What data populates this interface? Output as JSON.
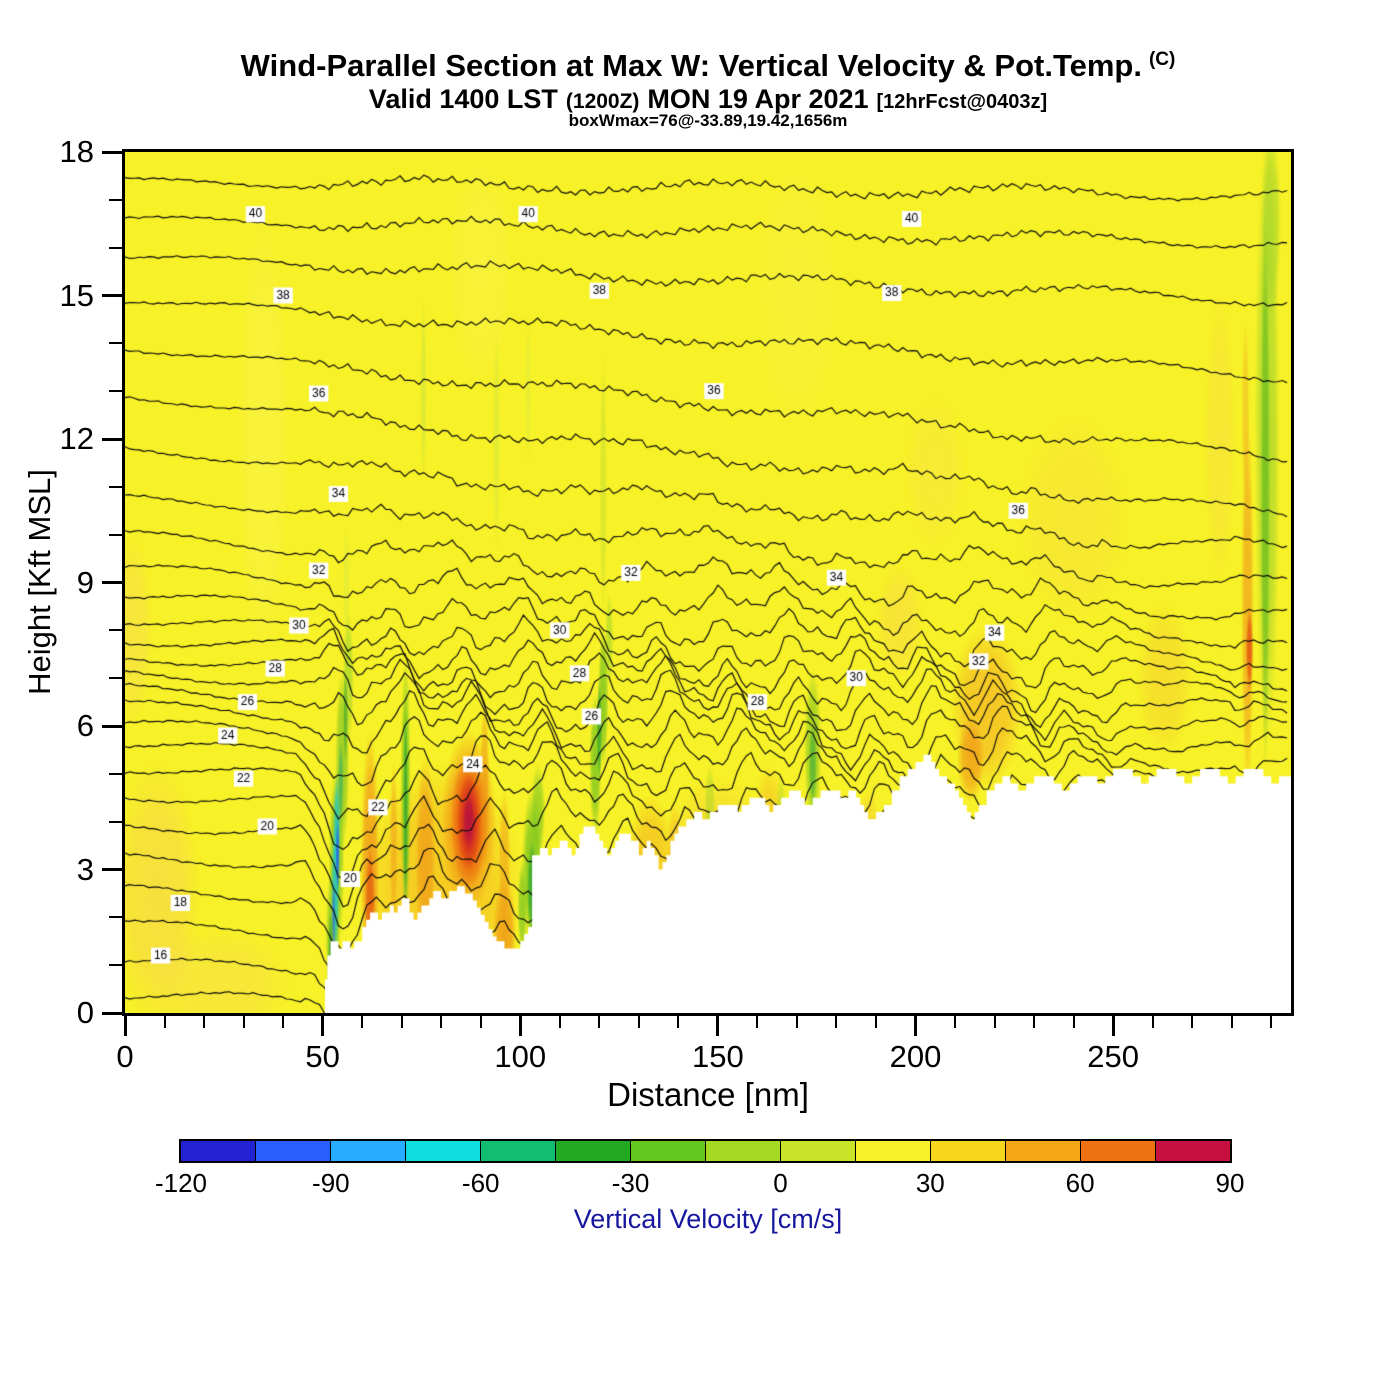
{
  "title": {
    "main": "Wind-Parallel Section at Max W: Vertical Velocity & Pot.Temp.",
    "suffix": "(C)",
    "valid_prefix": "Valid 1400 LST",
    "valid_zulu": "(1200Z)",
    "valid_date": "MON 19 Apr 2021",
    "forecast": "[12hrFcst@0403z]",
    "box_info": "boxWmax=76@-33.89,19.42,1656m"
  },
  "axes": {
    "x_label": "Distance [nm]",
    "y_label": "Height [Kft MSL]",
    "x_ticks": [
      0,
      50,
      100,
      150,
      200,
      250
    ],
    "y_ticks": [
      0,
      3,
      6,
      9,
      12,
      15,
      18
    ],
    "x_minor_step": 10,
    "y_minor_step": 1,
    "x_range": [
      0,
      295
    ],
    "y_range": [
      0,
      18
    ]
  },
  "colorbar": {
    "label": "Vertical Velocity [cm/s]",
    "ticks": [
      -120,
      -90,
      -60,
      -30,
      0,
      30,
      60,
      90
    ],
    "range": [
      -120,
      90
    ],
    "label_color": "#16169e",
    "colors": [
      "#2222d2",
      "#2a5eff",
      "#27acff",
      "#0fdede",
      "#12bd72",
      "#22aa22",
      "#63c81e",
      "#a4da22",
      "#c9e428",
      "#f7f127",
      "#f6d71c",
      "#f4a816",
      "#ee7212",
      "#c81040"
    ]
  },
  "chart_data": {
    "type": "heatmap",
    "title": "Wind-Parallel Section at Max W: Vertical Velocity & Pot.Temp. (C)",
    "subtitle": "Valid 1400 LST (1200Z) MON 19 Apr 2021 [12hrFcst@0403z]",
    "annotation": "boxWmax=76@-33.89,19.42,1656m",
    "xlabel": "Distance [nm]",
    "ylabel": "Height [Kft MSL]",
    "x": {
      "range": [
        0,
        295
      ],
      "ticks": [
        0,
        50,
        100,
        150,
        200,
        250
      ],
      "minor_step": 10
    },
    "y": {
      "range": [
        0,
        18
      ],
      "ticks": [
        0,
        3,
        6,
        9,
        12,
        15,
        18
      ],
      "minor_step": 1
    },
    "base_color": "#f7f127",
    "shaded_field": {
      "name": "Vertical Velocity",
      "units": "cm/s",
      "range": [
        -120,
        90
      ],
      "contour_interval": 15
    },
    "contour_field": {
      "name": "Potential Temperature",
      "units": "C",
      "labeled_levels": [
        16,
        18,
        20,
        22,
        24,
        26,
        28,
        30,
        32,
        34,
        36,
        38,
        40
      ]
    },
    "isentropes": {
      "levels": [
        15,
        16,
        17,
        18,
        19,
        20,
        21,
        22,
        23,
        24,
        25,
        26,
        27,
        28,
        29,
        30,
        31,
        32,
        33,
        34,
        35,
        36,
        37,
        38,
        39,
        40,
        41
      ],
      "left_edge_height_kft": [
        0.35,
        1.05,
        1.85,
        2.6,
        3.3,
        3.95,
        4.55,
        5.1,
        5.6,
        6.05,
        6.45,
        6.8,
        7.12,
        7.45,
        7.8,
        8.2,
        8.7,
        9.3,
        10.0,
        10.8,
        11.8,
        12.9,
        13.9,
        14.9,
        15.8,
        16.6,
        17.4
      ],
      "right_edge_height_kft": [
        -0.3,
        0.3,
        0.9,
        1.5,
        2.1,
        2.7,
        3.3,
        3.9,
        4.4,
        4.8,
        5.15,
        5.55,
        5.9,
        6.25,
        6.6,
        6.95,
        7.35,
        7.8,
        8.3,
        8.9,
        9.6,
        10.4,
        11.6,
        13.3,
        14.9,
        16.1,
        17.1
      ]
    },
    "contour_labels": [
      {
        "t": "40",
        "x": 33,
        "y": 16.7
      },
      {
        "t": "40",
        "x": 102,
        "y": 16.7
      },
      {
        "t": "40",
        "x": 199,
        "y": 16.6
      },
      {
        "t": "38",
        "x": 40,
        "y": 15.0
      },
      {
        "t": "38",
        "x": 120,
        "y": 15.1
      },
      {
        "t": "38",
        "x": 194,
        "y": 15.05
      },
      {
        "t": "36",
        "x": 49,
        "y": 12.95
      },
      {
        "t": "36",
        "x": 149,
        "y": 13.0
      },
      {
        "t": "36",
        "x": 226,
        "y": 10.5
      },
      {
        "t": "34",
        "x": 54,
        "y": 10.85
      },
      {
        "t": "34",
        "x": 180,
        "y": 9.1
      },
      {
        "t": "34",
        "x": 220,
        "y": 7.95
      },
      {
        "t": "32",
        "x": 49,
        "y": 9.25
      },
      {
        "t": "32",
        "x": 128,
        "y": 9.2
      },
      {
        "t": "32",
        "x": 216,
        "y": 7.35
      },
      {
        "t": "30",
        "x": 44,
        "y": 8.1
      },
      {
        "t": "30",
        "x": 110,
        "y": 8.0
      },
      {
        "t": "30",
        "x": 185,
        "y": 7.0
      },
      {
        "t": "28",
        "x": 38,
        "y": 7.2
      },
      {
        "t": "28",
        "x": 115,
        "y": 7.1
      },
      {
        "t": "28",
        "x": 160,
        "y": 6.5
      },
      {
        "t": "26",
        "x": 31,
        "y": 6.5
      },
      {
        "t": "26",
        "x": 118,
        "y": 6.2
      },
      {
        "t": "24",
        "x": 26,
        "y": 5.8
      },
      {
        "t": "24",
        "x": 88,
        "y": 5.2
      },
      {
        "t": "22",
        "x": 30,
        "y": 4.9
      },
      {
        "t": "22",
        "x": 64,
        "y": 4.3
      },
      {
        "t": "20",
        "x": 36,
        "y": 3.9
      },
      {
        "t": "20",
        "x": 57,
        "y": 2.8
      },
      {
        "t": "18",
        "x": 14,
        "y": 2.3
      },
      {
        "t": "16",
        "x": 9,
        "y": 1.2
      }
    ],
    "terrain_profile_kft": [
      [
        50,
        0
      ],
      [
        50.6,
        0.7
      ],
      [
        51.2,
        1.2
      ],
      [
        52,
        1.5
      ],
      [
        54,
        1.35
      ],
      [
        55,
        1.5
      ],
      [
        57,
        1.35
      ],
      [
        58,
        1.5
      ],
      [
        60,
        1.8
      ],
      [
        61,
        1.95
      ],
      [
        62,
        2.1
      ],
      [
        64,
        1.95
      ],
      [
        65,
        2.1
      ],
      [
        67,
        2.25
      ],
      [
        68,
        2.1
      ],
      [
        69,
        2.25
      ],
      [
        70,
        2.4
      ],
      [
        72,
        2.1
      ],
      [
        73,
        1.95
      ],
      [
        74,
        2.1
      ],
      [
        75,
        2.25
      ],
      [
        77,
        2.4
      ],
      [
        78,
        2.55
      ],
      [
        80,
        2.4
      ],
      [
        82,
        2.55
      ],
      [
        84,
        2.65
      ],
      [
        86,
        2.5
      ],
      [
        88,
        2.35
      ],
      [
        89,
        2.2
      ],
      [
        90,
        2.05
      ],
      [
        91,
        1.9
      ],
      [
        92,
        1.75
      ],
      [
        93,
        1.6
      ],
      [
        94,
        1.5
      ],
      [
        96,
        1.35
      ],
      [
        99,
        1.35
      ],
      [
        100,
        1.5
      ],
      [
        101,
        1.65
      ],
      [
        102,
        1.8
      ],
      [
        103,
        3.3
      ],
      [
        105,
        3.45
      ],
      [
        107,
        3.3
      ],
      [
        108,
        3.45
      ],
      [
        110,
        3.6
      ],
      [
        112,
        3.45
      ],
      [
        113,
        3.3
      ],
      [
        114,
        3.45
      ],
      [
        115,
        3.75
      ],
      [
        116,
        3.9
      ],
      [
        118,
        3.9
      ],
      [
        119,
        3.75
      ],
      [
        120,
        3.6
      ],
      [
        121,
        3.45
      ],
      [
        122,
        3.3
      ],
      [
        123,
        3.45
      ],
      [
        124,
        3.6
      ],
      [
        125,
        3.75
      ],
      [
        127,
        3.75
      ],
      [
        128,
        3.6
      ],
      [
        130,
        3.3
      ],
      [
        131,
        3.45
      ],
      [
        132,
        3.6
      ],
      [
        133,
        3.45
      ],
      [
        134,
        3.3
      ],
      [
        135,
        3
      ],
      [
        136,
        3.15
      ],
      [
        137,
        3.3
      ],
      [
        138,
        3.6
      ],
      [
        139,
        3.75
      ],
      [
        140,
        3.9
      ],
      [
        142,
        4.05
      ],
      [
        144,
        4.2
      ],
      [
        146,
        4.05
      ],
      [
        148,
        4.2
      ],
      [
        150,
        4.35
      ],
      [
        153,
        4.35
      ],
      [
        155,
        4.2
      ],
      [
        156,
        4.35
      ],
      [
        158,
        4.5
      ],
      [
        160,
        4.5
      ],
      [
        162,
        4.35
      ],
      [
        163,
        4.2
      ],
      [
        164,
        4.35
      ],
      [
        166,
        4.5
      ],
      [
        168,
        4.65
      ],
      [
        170,
        4.65
      ],
      [
        171,
        4.5
      ],
      [
        172,
        4.35
      ],
      [
        174,
        4.5
      ],
      [
        176,
        4.65
      ],
      [
        179,
        4.65
      ],
      [
        181,
        4.5
      ],
      [
        183,
        4.65
      ],
      [
        185,
        4.5
      ],
      [
        186,
        4.35
      ],
      [
        187,
        4.2
      ],
      [
        188,
        4.05
      ],
      [
        190,
        4.2
      ],
      [
        192,
        4.35
      ],
      [
        194,
        4.65
      ],
      [
        196,
        4.95
      ],
      [
        198,
        5.1
      ],
      [
        200,
        5.25
      ],
      [
        202,
        5.4
      ],
      [
        204,
        5.25
      ],
      [
        205,
        5.1
      ],
      [
        206,
        4.95
      ],
      [
        208,
        4.8
      ],
      [
        210,
        4.65
      ],
      [
        211,
        4.5
      ],
      [
        212,
        4.35
      ],
      [
        213,
        4.2
      ],
      [
        214,
        4.05
      ],
      [
        215,
        4.2
      ],
      [
        216,
        4.35
      ],
      [
        218,
        4.65
      ],
      [
        220,
        4.8
      ],
      [
        222,
        4.95
      ],
      [
        224,
        4.8
      ],
      [
        226,
        4.65
      ],
      [
        228,
        4.8
      ],
      [
        230,
        4.95
      ],
      [
        233,
        4.95
      ],
      [
        235,
        4.8
      ],
      [
        237,
        4.65
      ],
      [
        239,
        4.8
      ],
      [
        241,
        4.95
      ],
      [
        244,
        4.95
      ],
      [
        246,
        4.8
      ],
      [
        248,
        4.95
      ],
      [
        250,
        5.1
      ],
      [
        253,
        5.1
      ],
      [
        255,
        4.95
      ],
      [
        257,
        4.8
      ],
      [
        259,
        4.95
      ],
      [
        261,
        5.1
      ],
      [
        264,
        5.1
      ],
      [
        266,
        4.95
      ],
      [
        268,
        4.8
      ],
      [
        270,
        4.95
      ],
      [
        272,
        5.1
      ],
      [
        275,
        5.1
      ],
      [
        277,
        4.95
      ],
      [
        279,
        4.8
      ],
      [
        281,
        4.95
      ],
      [
        283,
        5.1
      ],
      [
        286,
        5.1
      ],
      [
        288,
        4.95
      ],
      [
        290,
        4.8
      ],
      [
        292,
        4.95
      ],
      [
        295,
        4.95
      ]
    ],
    "velocity_features": [
      [
        8,
        2.5,
        11,
        2.8,
        "#f7cf52",
        0.5
      ],
      [
        2,
        8,
        5,
        2,
        "#f7d45c",
        0.4
      ],
      [
        24,
        0.6,
        18,
        1.2,
        "#f7d45c",
        0.35
      ],
      [
        35,
        12,
        7,
        5,
        "#faf45a",
        0.4
      ],
      [
        90,
        15.5,
        9,
        2.5,
        "#faf45a",
        0.35
      ],
      [
        170,
        15,
        12,
        3,
        "#f9f254",
        0.3
      ],
      [
        150,
        3,
        14,
        2,
        "#f6c33a",
        0.5
      ],
      [
        133,
        3,
        6,
        1.6,
        "#f3a81e",
        0.55
      ],
      [
        96,
        1.6,
        3,
        1.3,
        "#ef9214",
        0.8
      ],
      [
        110,
        1.8,
        5,
        1.5,
        "#f4b01f",
        0.55
      ],
      [
        129,
        2.6,
        2.2,
        1.1,
        "#f0a01a",
        0.7
      ],
      [
        139,
        3.4,
        2,
        1,
        "#f4b324",
        0.55
      ],
      [
        158,
        3.2,
        3,
        1,
        "#f4b82a",
        0.5
      ],
      [
        163,
        4,
        4,
        1.2,
        "#f4b01f",
        0.45
      ],
      [
        188,
        3.8,
        3,
        0.9,
        "#f5c235",
        0.45
      ],
      [
        196,
        8.2,
        6,
        1.2,
        "#f7d44a",
        0.45
      ],
      [
        218,
        6.4,
        9,
        1.7,
        "#f4b324",
        0.7
      ],
      [
        214,
        5.3,
        3.5,
        0.9,
        "#ef8d13",
        0.65
      ],
      [
        240,
        10.3,
        14,
        2.2,
        "#f7dc40",
        0.45
      ],
      [
        205,
        11.3,
        8,
        1.6,
        "#f8e24a",
        0.4
      ],
      [
        263,
        7,
        7,
        1.6,
        "#f6cc30",
        0.5
      ],
      [
        277,
        12,
        4,
        3,
        "#f7da44",
        0.45
      ],
      [
        80,
        2.6,
        21,
        2.6,
        "#f4a41a",
        0.5
      ],
      [
        62,
        3,
        2.4,
        2.9,
        "#f09718",
        0.85
      ],
      [
        62,
        2.2,
        1.3,
        1.3,
        "#e2570f",
        0.8
      ],
      [
        68,
        3.5,
        1,
        1.8,
        "#f2a41c",
        0.65
      ],
      [
        76,
        3.2,
        2.6,
        2.2,
        "#f09c18",
        0.8
      ],
      [
        87,
        4,
        7,
        1.9,
        "#f29014",
        0.9
      ],
      [
        87,
        4,
        4.6,
        1.4,
        "#e8540e",
        0.9
      ],
      [
        87,
        4,
        2.9,
        1,
        "#d62a20",
        0.9
      ],
      [
        87,
        4,
        1.6,
        0.6,
        "#b51240",
        0.88
      ],
      [
        91,
        4.8,
        1.2,
        1.8,
        "#ef9014",
        0.6
      ],
      [
        96,
        3.2,
        1.5,
        1.5,
        "#f0a018",
        0.6
      ],
      [
        52.5,
        1.5,
        1.8,
        1.6,
        "#8cc922",
        0.92
      ],
      [
        53.5,
        3.2,
        2,
        2,
        "#8cc922",
        0.92
      ],
      [
        55,
        5.3,
        1.8,
        1.9,
        "#8cc922",
        0.85
      ],
      [
        56.5,
        7,
        1.4,
        1.4,
        "#a5d52a",
        0.75
      ],
      [
        52,
        1.2,
        0.6,
        1,
        "#2f9e2f",
        0.75
      ],
      [
        55.8,
        6.2,
        0.6,
        1,
        "#2f9e2f",
        0.6
      ],
      [
        53.2,
        2.6,
        1,
        1.4,
        "#1fc8c8",
        0.85
      ],
      [
        53.6,
        3.8,
        0.9,
        1.2,
        "#1fc8c8",
        0.85
      ],
      [
        53.8,
        3.3,
        0.5,
        0.8,
        "#2a62e0",
        0.85
      ],
      [
        52.8,
        2,
        0.5,
        0.8,
        "#2a62e0",
        0.6
      ],
      [
        54.6,
        4.8,
        0.7,
        0.9,
        "#35b065",
        0.7
      ],
      [
        56,
        9,
        0.8,
        1.2,
        "#cde846",
        0.45
      ],
      [
        71,
        4.6,
        1.3,
        2.9,
        "#79c81f",
        0.85
      ],
      [
        71,
        4.3,
        0.6,
        2.2,
        "#2fa42f",
        0.8
      ],
      [
        75.5,
        13,
        0.8,
        2,
        "#c3e23c",
        0.5
      ],
      [
        94,
        12,
        0.9,
        2.4,
        "#c9e542",
        0.45
      ],
      [
        102,
        13,
        0.7,
        1.6,
        "#cfe84a",
        0.4
      ],
      [
        121,
        11,
        0.9,
        2.8,
        "#b9dd34",
        0.5
      ],
      [
        103,
        3,
        2.6,
        1.7,
        "#7cc620",
        0.9
      ],
      [
        103,
        2.6,
        1.3,
        1,
        "#2fa42f",
        0.85
      ],
      [
        100.5,
        2.2,
        1.2,
        1,
        "#7cc620",
        0.8
      ],
      [
        104.5,
        4.2,
        1.8,
        1,
        "#7cc620",
        0.7
      ],
      [
        119,
        5.2,
        1.5,
        1.5,
        "#7cc620",
        0.85
      ],
      [
        121,
        6.6,
        1.3,
        1.5,
        "#7cc620",
        0.85
      ],
      [
        120,
        5.9,
        0.7,
        1.1,
        "#2fa42f",
        0.8
      ],
      [
        122.5,
        7.8,
        1,
        1,
        "#9ad42c",
        0.6
      ],
      [
        148,
        4.3,
        1.4,
        0.9,
        "#a5d52a",
        0.55
      ],
      [
        174,
        5.5,
        2.2,
        1.7,
        "#8cc922",
        0.8
      ],
      [
        174,
        5.2,
        1,
        0.9,
        "#3aaa3a",
        0.65
      ],
      [
        166,
        4.2,
        1.3,
        0.8,
        "#a5d52a",
        0.45
      ],
      [
        289,
        12,
        3.2,
        6.5,
        "#a8d62c",
        0.8
      ],
      [
        288.5,
        11,
        1.2,
        6,
        "#5cb81e",
        0.7
      ],
      [
        290,
        16.5,
        2.5,
        2,
        "#a8d62c",
        0.75
      ],
      [
        284,
        8.5,
        1.6,
        4,
        "#f0a01a",
        0.75
      ],
      [
        284.5,
        7.6,
        0.9,
        0.9,
        "#e2490f",
        0.8
      ],
      [
        283.5,
        12.5,
        1,
        2,
        "#f2b322",
        0.55
      ]
    ]
  }
}
